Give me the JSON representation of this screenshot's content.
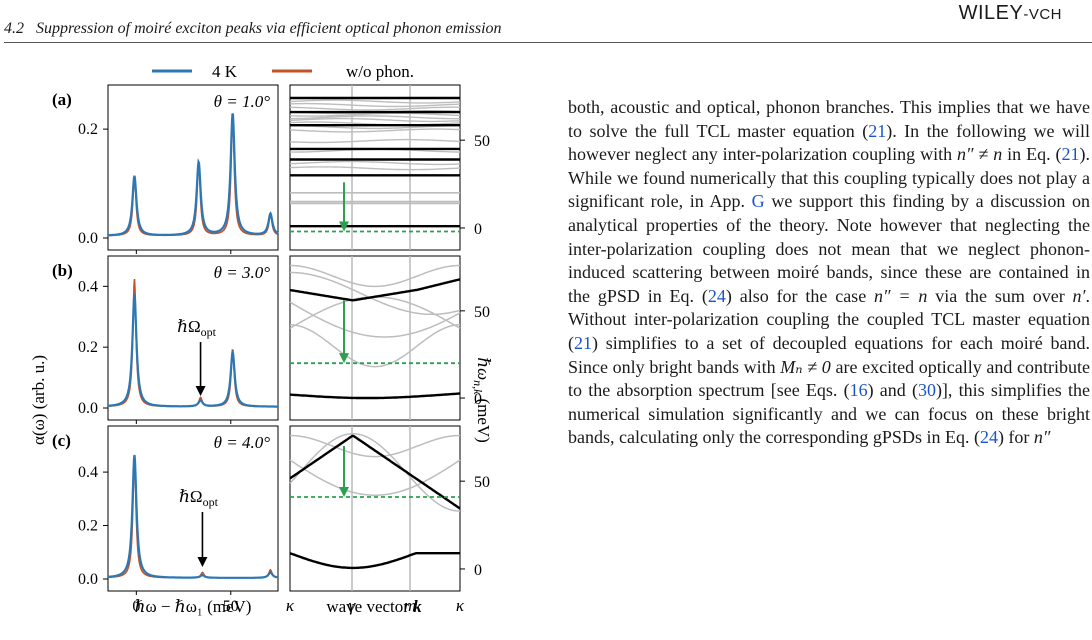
{
  "header": {
    "section_number": "4.2",
    "section_title": "Suppression of moiré exciton peaks via efficient optical phonon emission",
    "publisher": "WILEY-VCH"
  },
  "figure": {
    "legend": [
      {
        "label": "4 K",
        "color": "#2b78b5"
      },
      {
        "label": "w/o phon.",
        "color": "#c5512a"
      }
    ],
    "panels": [
      {
        "tag": "(a)",
        "angle": "θ = 1.0°",
        "yticks": [
          "0.0",
          "0.2"
        ],
        "arrow_label": ""
      },
      {
        "tag": "(b)",
        "angle": "θ = 3.0°",
        "yticks": [
          "0.0",
          "0.2",
          "0.4"
        ],
        "arrow_label": "ℏΩ"
      },
      {
        "tag": "(c)",
        "angle": "θ = 4.0°",
        "yticks": [
          "0.0",
          "0.2",
          "0.4"
        ],
        "arrow_label": "ℏΩ"
      }
    ],
    "arrow_subscript": "opt",
    "left_ylabel": "α(ω) (arb. u.)",
    "left_xticks": [
      "0",
      "50"
    ],
    "left_xlabel": "ℏω − ℏω₁ (meV)",
    "right_yticks": [
      "0",
      "50"
    ],
    "right_ylabel": "ℏω",
    "right_ylabel_sub": "n,k",
    "right_ylabel_unit": "(meV)",
    "right_xticks": [
      "κ",
      "γ",
      "m",
      "κ"
    ],
    "right_xlabel": "wave vector",
    "right_xlabel_bold": "k",
    "colors": {
      "blue": "#2b78b5",
      "red": "#c5512a",
      "green": "#2ca050",
      "gray": "#bdbdbd"
    }
  },
  "chart_data": [
    {
      "type": "line",
      "title": "θ = 1.0°",
      "xlabel": "ℏω − ℏω₁ (meV)",
      "ylabel": "α(ω) (arb. u.)",
      "xlim": [
        -15,
        75
      ],
      "ylim": [
        0,
        0.27
      ],
      "series": [
        {
          "name": "4 K",
          "peaks": [
            [
              -1,
              0.11
            ],
            [
              33,
              0.135
            ],
            [
              51,
              0.225
            ],
            [
              71,
              0.04
            ]
          ]
        },
        {
          "name": "w/o phon.",
          "peaks": [
            [
              -1,
              0.11
            ],
            [
              33,
              0.135
            ],
            [
              51,
              0.225
            ],
            [
              71,
              0.04
            ]
          ]
        }
      ]
    },
    {
      "type": "line",
      "title": "θ = 3.0°",
      "xlabel": "ℏω − ℏω₁ (meV)",
      "ylabel": "α(ω) (arb. u.)",
      "xlim": [
        -15,
        75
      ],
      "ylim": [
        0,
        0.48
      ],
      "series": [
        {
          "name": "4 K",
          "peaks": [
            [
              -1,
              0.37
            ],
            [
              34,
              0.02
            ],
            [
              51,
              0.18
            ]
          ]
        },
        {
          "name": "w/o phon.",
          "peaks": [
            [
              -1,
              0.42
            ],
            [
              34,
              0.03
            ],
            [
              51,
              0.19
            ]
          ]
        }
      ]
    },
    {
      "type": "line",
      "title": "θ = 4.0°",
      "xlabel": "ℏω − ℏω₁ (meV)",
      "ylabel": "α(ω) (arb. u.)",
      "xlim": [
        -15,
        75
      ],
      "ylim": [
        0,
        0.55
      ],
      "series": [
        {
          "name": "4 K",
          "peaks": [
            [
              -1,
              0.46
            ],
            [
              35,
              0.01
            ],
            [
              71,
              0.02
            ]
          ]
        },
        {
          "name": "w/o phon.",
          "peaks": [
            [
              -1,
              0.45
            ],
            [
              35,
              0.02
            ],
            [
              71,
              0.03
            ]
          ]
        }
      ]
    }
  ],
  "text": {
    "paragraph": [
      {
        "t": "both, acoustic and optical, phonon branches. This implies that we have to solve the full TCL master equation ("
      },
      {
        "r": "21"
      },
      {
        "t": "). In the following we will however neglect any inter-polarization coupling with "
      },
      {
        "m": "n″ ≠ n"
      },
      {
        "t": " in Eq. ("
      },
      {
        "r": "21"
      },
      {
        "t": "). While we found numerically that this coupling typically does not play a significant role, in App. "
      },
      {
        "r": "G"
      },
      {
        "t": " we support this finding by a discussion on analytical properties of the theory. Note however that neglecting the inter-polarization coupling does not mean that we neglect phonon-induced scattering between moiré bands, since these are contained in the gPSD in Eq. ("
      },
      {
        "r": "24"
      },
      {
        "t": ") also for the case "
      },
      {
        "m": "n″ = n"
      },
      {
        "t": " via the sum over "
      },
      {
        "m": "n′"
      },
      {
        "t": ". Without inter-polarization coupling the coupled TCL master equation ("
      },
      {
        "r": "21"
      },
      {
        "t": ") simplifies to a set of decoupled equations for each moiré band. Since only bright bands with "
      },
      {
        "m": "Mₙ ≠ 0"
      },
      {
        "t": " are excited optically and contribute to the absorption spectrum [see Eqs. ("
      },
      {
        "r": "16"
      },
      {
        "t": ") and ("
      },
      {
        "r": "30"
      },
      {
        "t": ")], this simplifies the numerical simulation significantly and we can focus on these bright bands, calculating only the corresponding gPSDs in Eq. ("
      },
      {
        "r": "24"
      },
      {
        "t": ") for "
      },
      {
        "m": "n″"
      }
    ]
  }
}
